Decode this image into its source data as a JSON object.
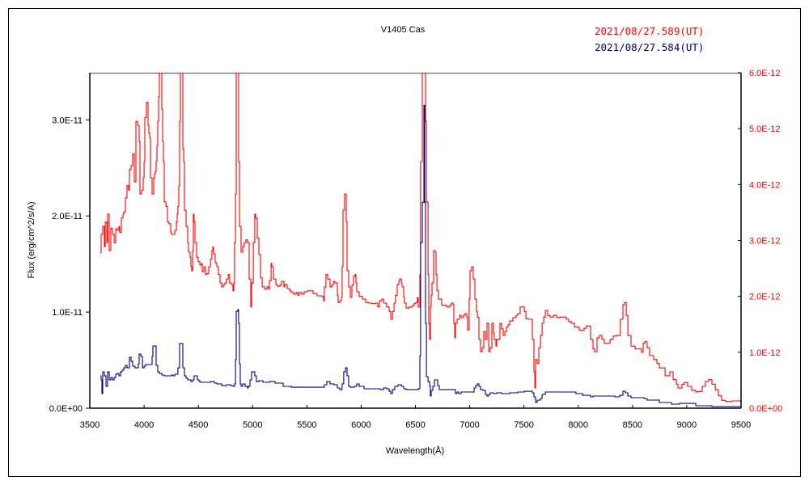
{
  "chart_data": {
    "type": "line",
    "title": "V1405 Cas",
    "xlabel": "Wavelength(Å)",
    "ylabel": "Flux (erg/cm^2/s/A)",
    "xlim": [
      3500,
      9500
    ],
    "xticks": [
      "3500",
      "4000",
      "4500",
      "5000",
      "5500",
      "6000",
      "6500",
      "7000",
      "7500",
      "8000",
      "8500",
      "9000",
      "9500"
    ],
    "ylim_left": [
      0,
      3.49e-11
    ],
    "yticks_left": [
      "0.0E+00",
      "1.0E-11",
      "2.0E-11",
      "3.0E-11"
    ],
    "ylim_right": [
      0,
      6e-12
    ],
    "yticks_right": [
      "0.0E+00",
      "1.0E-12",
      "2.0E-12",
      "3.0E-12",
      "4.0E-12",
      "5.0E-12",
      "6.0E-12"
    ],
    "grid": false,
    "legend_placement": "top-right",
    "series": [
      {
        "name": "2021/08/27.589(UT)",
        "color": "#ff0000",
        "axis": "right",
        "unit_scale": 1e-12,
        "x": [
          3597,
          3604,
          3619,
          3634,
          3642,
          3657,
          3664,
          3679,
          3694,
          3709,
          3724,
          3739,
          3753,
          3768,
          3776,
          3791,
          3806,
          3813,
          3828,
          3843,
          3858,
          3865,
          3880,
          3895,
          3910,
          3925,
          3940,
          3955,
          3962,
          3977,
          3992,
          4000,
          4007,
          4022,
          4037,
          4044,
          4052,
          4059,
          4074,
          4089,
          4096,
          4104,
          4111,
          4119,
          4126,
          4134,
          4141,
          4156,
          4163,
          4171,
          4178,
          4186,
          4201,
          4216,
          4230,
          4245,
          4253,
          4268,
          4283,
          4298,
          4305,
          4312,
          4320,
          4327,
          4335,
          4350,
          4357,
          4365,
          4372,
          4387,
          4402,
          4409,
          4424,
          4432,
          4439,
          4447,
          4454,
          4461,
          4469,
          4484,
          4499,
          4514,
          4529,
          4536,
          4551,
          4566,
          4581,
          4596,
          4611,
          4625,
          4633,
          4640,
          4655,
          4670,
          4685,
          4700,
          4715,
          4730,
          4745,
          4760,
          4775,
          4789,
          4804,
          4819,
          4827,
          4834,
          4842,
          4849,
          4864,
          4871,
          4879,
          4894,
          4909,
          4923,
          4938,
          4953,
          4968,
          4983,
          4991,
          5006,
          5020,
          5028,
          5043,
          5058,
          5073,
          5088,
          5110,
          5132,
          5147,
          5155,
          5170,
          5177,
          5192,
          5214,
          5229,
          5252,
          5266,
          5289,
          5296,
          5319,
          5341,
          5356,
          5378,
          5401,
          5416,
          5430,
          5453,
          5475,
          5505,
          5542,
          5557,
          5594,
          5639,
          5654,
          5661,
          5676,
          5691,
          5714,
          5729,
          5744,
          5758,
          5781,
          5788,
          5803,
          5818,
          5825,
          5833,
          5848,
          5863,
          5870,
          5885,
          5900,
          5915,
          5930,
          5945,
          5952,
          5960,
          5982,
          6012,
          6042,
          6071,
          6101,
          6131,
          6153,
          6168,
          6191,
          6206,
          6235,
          6258,
          6273,
          6288,
          6303,
          6317,
          6332,
          6347,
          6355,
          6370,
          6377,
          6392,
          6399,
          6414,
          6444,
          6474,
          6489,
          6504,
          6519,
          6526,
          6534,
          6541,
          6548,
          6563,
          6586,
          6593,
          6601,
          6616,
          6623,
          6631,
          6638,
          6645,
          6653,
          6668,
          6683,
          6690,
          6698,
          6712,
          6742,
          6787,
          6817,
          6832,
          6847,
          6854,
          6862,
          6869,
          6884,
          6906,
          6921,
          6943,
          6958,
          6973,
          6981,
          6995,
          7003,
          7018,
          7033,
          7048,
          7063,
          7070,
          7085,
          7100,
          7115,
          7130,
          7145,
          7160,
          7175,
          7189,
          7204,
          7219,
          7227,
          7242,
          7249,
          7279,
          7294,
          7309,
          7324,
          7339,
          7353,
          7368,
          7398,
          7428,
          7443,
          7465,
          7488,
          7503,
          7518,
          7540,
          7562,
          7577,
          7592,
          7600,
          7607,
          7622,
          7637,
          7652,
          7667,
          7682,
          7697,
          7719,
          7741,
          7771,
          7801,
          7830,
          7860,
          7890,
          7912,
          7935,
          7965,
          7979,
          8009,
          8024,
          8054,
          8076,
          8099,
          8114,
          8136,
          8151,
          8173,
          8196,
          8218,
          8240,
          8263,
          8293,
          8322,
          8352,
          8389,
          8412,
          8427,
          8442,
          8457,
          8486,
          8524,
          8561,
          8583,
          8598,
          8613,
          8635,
          8658,
          8695,
          8725,
          8747,
          8770,
          8800,
          8822,
          8844,
          8874,
          8904,
          8919,
          8934,
          8956,
          8978,
          9008,
          9045,
          9083,
          9105,
          9142,
          9172,
          9202,
          9232,
          9262,
          9291,
          9321,
          9358,
          9381,
          9418,
          9455,
          9493
        ],
        "y": [
          2.78,
          3.11,
          3.25,
          2.89,
          3.33,
          2.96,
          3.47,
          2.82,
          3.22,
          3.11,
          2.96,
          3.21,
          3.18,
          3.25,
          3.14,
          3.4,
          3.47,
          3.51,
          3.76,
          3.98,
          3.9,
          4.27,
          4.34,
          4.55,
          4.05,
          5.13,
          5.06,
          4.77,
          3.83,
          3.9,
          4.12,
          4.41,
          5.2,
          5.47,
          5.06,
          4.92,
          4.84,
          4.12,
          3.83,
          4.12,
          4.19,
          4.24,
          4.41,
          4.7,
          5.13,
          5.57,
          7.5,
          7.5,
          5.35,
          4.77,
          4.41,
          3.69,
          3.61,
          3.33,
          3.3,
          3.15,
          3.11,
          3.11,
          3.18,
          3.33,
          3.47,
          3.61,
          3.98,
          5.13,
          7.5,
          7.5,
          4.63,
          4.41,
          3.54,
          3.25,
          2.96,
          2.79,
          2.7,
          2.53,
          2.46,
          2.82,
          3.47,
          3.33,
          2.96,
          2.7,
          2.62,
          2.56,
          2.59,
          2.44,
          2.53,
          2.39,
          2.41,
          2.53,
          2.67,
          2.82,
          2.88,
          2.76,
          2.6,
          2.53,
          2.39,
          2.24,
          2.17,
          2.21,
          2.24,
          2.31,
          2.39,
          2.24,
          2.21,
          2.1,
          2.24,
          2.96,
          3.83,
          7.5,
          7.5,
          4.41,
          3.25,
          2.79,
          2.89,
          2.96,
          3.01,
          2.96,
          2.31,
          1.81,
          2.24,
          2.96,
          3.47,
          3.4,
          3.04,
          2.75,
          2.33,
          2.17,
          2.13,
          2.17,
          2.13,
          2.28,
          2.59,
          2.53,
          2.31,
          2.21,
          2.18,
          2.2,
          2.27,
          2.17,
          2.21,
          2.14,
          2.1,
          2.07,
          2.04,
          2.07,
          2.02,
          2.07,
          2.04,
          2.08,
          2.1,
          2.1,
          2.05,
          2.01,
          2.0,
          1.92,
          2.17,
          2.39,
          2.31,
          2.17,
          2.2,
          2.27,
          2.24,
          2.02,
          1.89,
          1.92,
          1.98,
          2.53,
          3.54,
          3.83,
          3.33,
          2.46,
          2.17,
          1.98,
          2.2,
          2.36,
          2.39,
          2.24,
          2.08,
          2.0,
          1.95,
          1.89,
          1.88,
          1.87,
          1.88,
          1.81,
          1.92,
          1.95,
          1.88,
          1.81,
          1.73,
          1.59,
          1.73,
          1.88,
          2.02,
          2.21,
          2.27,
          2.31,
          2.24,
          2.17,
          1.98,
          1.88,
          1.79,
          1.81,
          1.84,
          1.87,
          1.89,
          1.98,
          1.81,
          1.81,
          2.39,
          4.41,
          7.5,
          7.5,
          5.13,
          3.69,
          2.39,
          1.52,
          1.23,
          1.81,
          2.02,
          2.24,
          2.82,
          2.79,
          2.39,
          2.1,
          1.95,
          1.84,
          1.81,
          1.84,
          1.88,
          1.85,
          1.52,
          1.26,
          1.52,
          1.59,
          1.66,
          1.62,
          1.66,
          1.69,
          1.63,
          1.4,
          1.95,
          2.46,
          2.53,
          2.31,
          1.95,
          1.73,
          1.63,
          1.23,
          1.01,
          1.08,
          1.37,
          1.23,
          1.52,
          1.01,
          1.08,
          1.52,
          1.34,
          1.23,
          1.11,
          1.23,
          1.52,
          1.42,
          1.3,
          1.37,
          1.45,
          1.49,
          1.56,
          1.62,
          1.66,
          1.69,
          1.81,
          1.81,
          1.73,
          1.6,
          1.59,
          1.59,
          1.23,
          0.65,
          0.36,
          0.87,
          0.8,
          1.08,
          1.3,
          1.52,
          1.63,
          1.75,
          1.66,
          1.63,
          1.66,
          1.62,
          1.63,
          1.63,
          1.59,
          1.55,
          1.52,
          1.45,
          1.45,
          1.4,
          1.39,
          1.43,
          1.47,
          1.47,
          1.23,
          1.06,
          1.01,
          1.26,
          1.3,
          1.23,
          1.16,
          1.16,
          1.23,
          1.29,
          1.3,
          1.59,
          1.85,
          1.89,
          1.66,
          1.3,
          1.11,
          1.06,
          1.06,
          1.0,
          1.16,
          1.19,
          1.08,
          0.94,
          0.87,
          0.8,
          0.72,
          0.72,
          0.58,
          0.58,
          0.65,
          0.51,
          0.43,
          0.36,
          0.36,
          0.43,
          0.46,
          0.39,
          0.32,
          0.29,
          0.3,
          0.39,
          0.48,
          0.51,
          0.43,
          0.33,
          0.22,
          0.14,
          0.12,
          0.12,
          0.13,
          0.13,
          0.12
        ]
      },
      {
        "name": "2021/08/27.584(UT)",
        "color": "#000080",
        "axis": "left",
        "unit_scale": 1e-11,
        "x": [
          3597,
          3604,
          3612,
          3619,
          3634,
          3649,
          3664,
          3679,
          3694,
          3709,
          3724,
          3739,
          3753,
          3768,
          3783,
          3798,
          3813,
          3828,
          3843,
          3865,
          3880,
          3895,
          3917,
          3932,
          3947,
          3955,
          3970,
          3985,
          4000,
          4014,
          4059,
          4074,
          4081,
          4096,
          4111,
          4126,
          4141,
          4163,
          4186,
          4238,
          4253,
          4268,
          4283,
          4298,
          4312,
          4327,
          4342,
          4357,
          4372,
          4387,
          4402,
          4432,
          4447,
          4461,
          4476,
          4491,
          4506,
          4521,
          4611,
          4648,
          4670,
          4715,
          4760,
          4797,
          4819,
          4834,
          4842,
          4849,
          4864,
          4871,
          4879,
          4886,
          4894,
          4909,
          4931,
          4953,
          4961,
          4976,
          4991,
          5006,
          5020,
          5035,
          5058,
          5095,
          5155,
          5207,
          5281,
          5356,
          5654,
          5661,
          5684,
          5714,
          5751,
          5781,
          5803,
          5825,
          5840,
          5855,
          5870,
          5885,
          5900,
          5937,
          5960,
          5982,
          6027,
          6101,
          6176,
          6206,
          6235,
          6258,
          6273,
          6288,
          6310,
          6340,
          6370,
          6392,
          6414,
          6526,
          6541,
          6548,
          6563,
          6578,
          6586,
          6593,
          6601,
          6616,
          6631,
          6638,
          6645,
          6660,
          6675,
          6690,
          6705,
          6720,
          6847,
          6869,
          6884,
          6899,
          6921,
          7033,
          7040,
          7055,
          7070,
          7085,
          7100,
          7123,
          7145,
          7160,
          7175,
          7189,
          7219,
          7249,
          7294,
          7368,
          7443,
          7503,
          7555,
          7577,
          7592,
          7607,
          7622,
          7652,
          7667,
          7697,
          7816,
          7890,
          7979,
          8039,
          8114,
          8136,
          8226,
          8337,
          8382,
          8412,
          8434,
          8457,
          8486,
          8561,
          8606,
          8635,
          8673,
          8747,
          8785,
          8859,
          8934,
          9045,
          9083,
          9232,
          9493
        ],
        "y": [
          0.336,
          0.294,
          0.151,
          0.378,
          0.336,
          0.227,
          0.378,
          0.294,
          0.319,
          0.294,
          0.319,
          0.353,
          0.361,
          0.336,
          0.378,
          0.395,
          0.42,
          0.445,
          0.42,
          0.529,
          0.487,
          0.437,
          0.42,
          0.42,
          0.462,
          0.563,
          0.538,
          0.42,
          0.437,
          0.454,
          0.454,
          0.538,
          0.647,
          0.647,
          0.445,
          0.378,
          0.361,
          0.345,
          0.336,
          0.336,
          0.345,
          0.336,
          0.353,
          0.353,
          0.42,
          0.672,
          0.672,
          0.42,
          0.336,
          0.311,
          0.294,
          0.277,
          0.294,
          0.336,
          0.336,
          0.294,
          0.277,
          0.269,
          0.277,
          0.261,
          0.252,
          0.235,
          0.244,
          0.235,
          0.227,
          0.252,
          0.504,
          1.008,
          1.025,
          0.882,
          0.462,
          0.252,
          0.227,
          0.252,
          0.227,
          0.21,
          0.227,
          0.294,
          0.378,
          0.378,
          0.336,
          0.277,
          0.286,
          0.269,
          0.277,
          0.261,
          0.227,
          0.218,
          0.218,
          0.244,
          0.277,
          0.252,
          0.244,
          0.21,
          0.193,
          0.252,
          0.378,
          0.42,
          0.336,
          0.227,
          0.218,
          0.227,
          0.252,
          0.227,
          0.202,
          0.202,
          0.193,
          0.21,
          0.202,
          0.176,
          0.151,
          0.193,
          0.227,
          0.244,
          0.227,
          0.202,
          0.193,
          0.202,
          0.546,
          1.723,
          2.143,
          3.151,
          2.143,
          0.882,
          0.328,
          0.277,
          0.227,
          0.126,
          0.185,
          0.227,
          0.294,
          0.294,
          0.235,
          0.193,
          0.193,
          0.151,
          0.168,
          0.151,
          0.168,
          0.168,
          0.21,
          0.235,
          0.252,
          0.227,
          0.193,
          0.185,
          0.143,
          0.126,
          0.143,
          0.16,
          0.151,
          0.16,
          0.151,
          0.16,
          0.168,
          0.176,
          0.176,
          0.16,
          0.118,
          0.059,
          0.084,
          0.101,
          0.143,
          0.168,
          0.168,
          0.168,
          0.151,
          0.134,
          0.118,
          0.126,
          0.126,
          0.118,
          0.134,
          0.176,
          0.16,
          0.126,
          0.109,
          0.109,
          0.101,
          0.084,
          0.084,
          0.059,
          0.059,
          0.042,
          0.05,
          0.05,
          0.025,
          0.017,
          0.017
        ]
      }
    ]
  }
}
